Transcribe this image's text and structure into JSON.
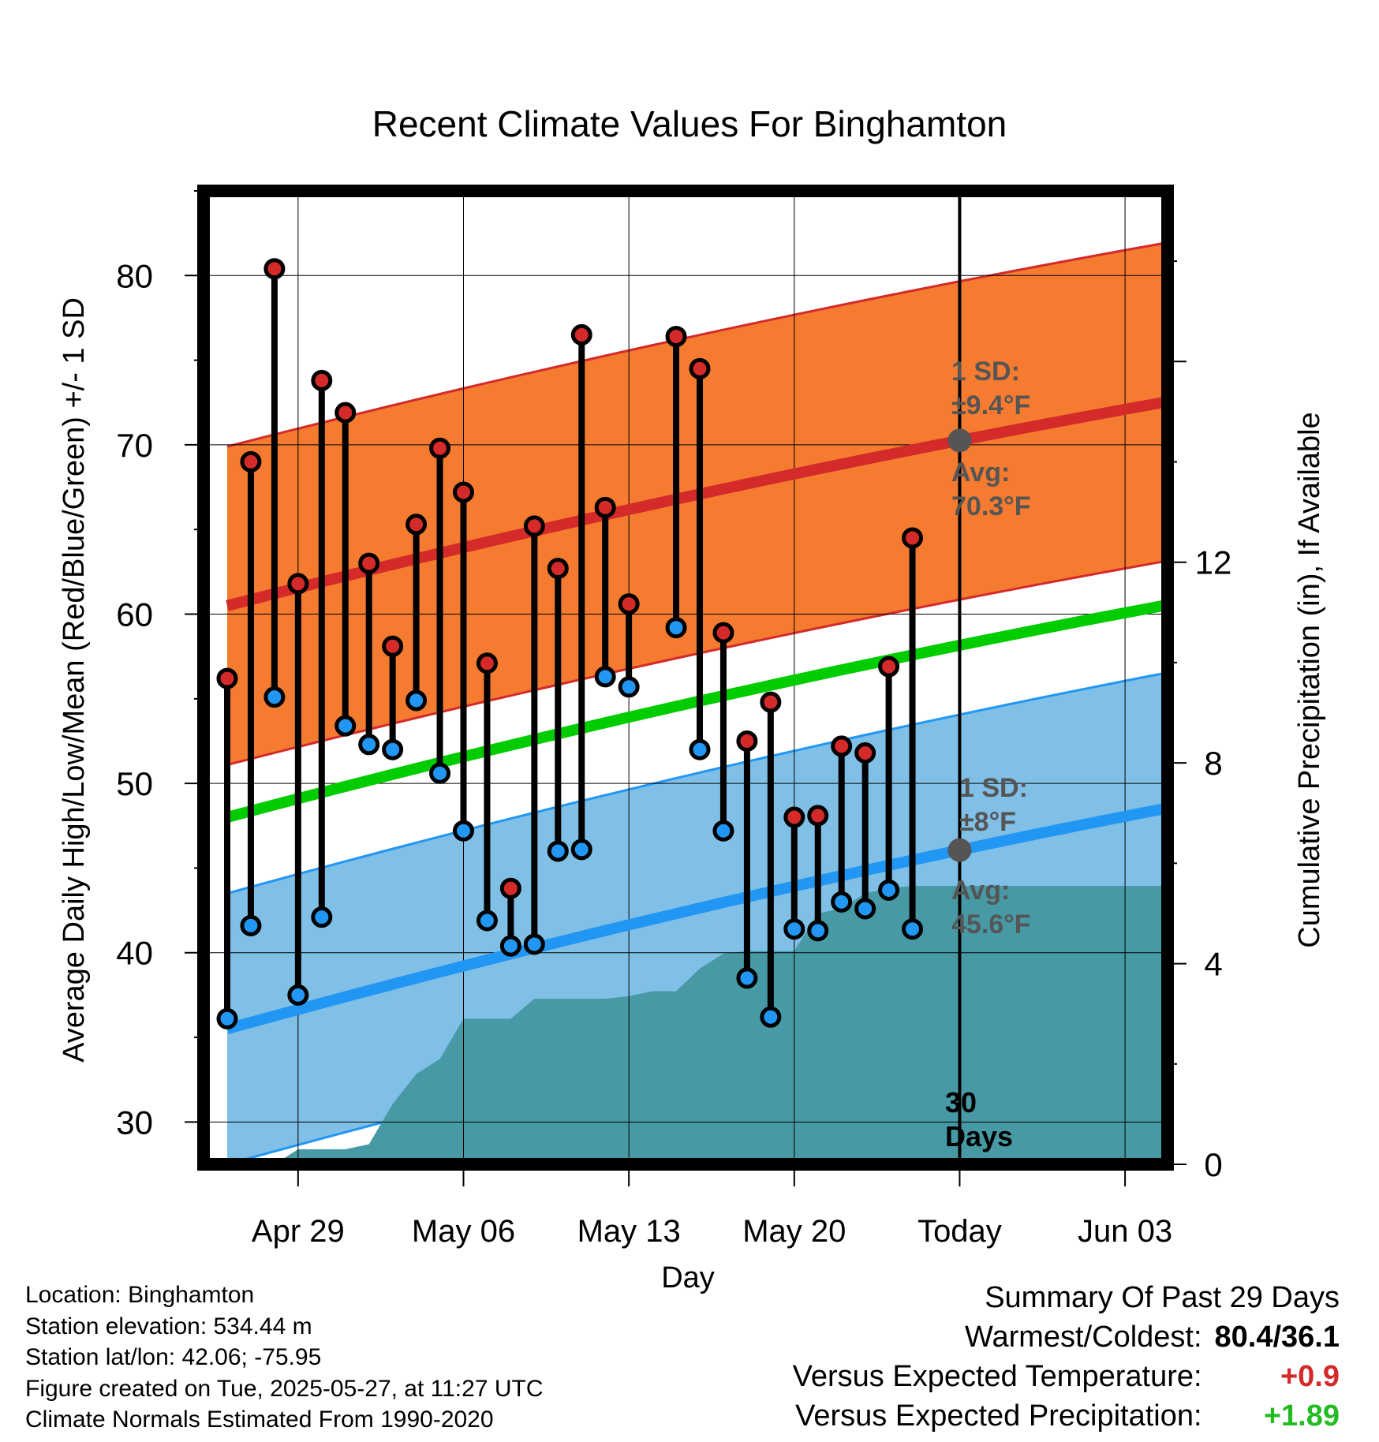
{
  "chart_data": {
    "type": "line",
    "title": "Recent Climate Values For Binghamton",
    "xlabel": "Day",
    "ylabel": "Average Daily High/Low/Mean (Red/Blue/Green) +/- 1 SD",
    "y2label": "Cumulative Precipitation (in), If Available",
    "ylim": [
      27.5,
      85
    ],
    "y2lim": [
      0,
      19.4
    ],
    "x_tick_labels": [
      "Apr 29",
      "May 06",
      "May 13",
      "May 20",
      "Today",
      "Jun 03"
    ],
    "y_ticks": [
      30,
      40,
      50,
      60,
      70,
      80
    ],
    "y2_ticks": [
      0,
      4,
      8,
      12
    ],
    "days": [
      "Apr 26",
      "Apr 27",
      "Apr 28",
      "Apr 29",
      "Apr 30",
      "May 01",
      "May 02",
      "May 03",
      "May 04",
      "May 05",
      "May 06",
      "May 07",
      "May 08",
      "May 09",
      "May 10",
      "May 11",
      "May 12",
      "May 13",
      "May 14",
      "May 15",
      "May 16",
      "May 17",
      "May 18",
      "May 19",
      "May 20",
      "May 21",
      "May 22",
      "May 23",
      "May 24",
      "May 25",
      "May 26",
      "May 27",
      "May 28",
      "May 29",
      "May 30",
      "May 31",
      "Jun 01",
      "Jun 02",
      "Jun 03",
      "Jun 04",
      "Jun 05"
    ],
    "series": [
      {
        "name": "Daily High",
        "color": "#d42a2a",
        "values": [
          56.2,
          69.0,
          80.4,
          61.8,
          73.8,
          71.9,
          63.0,
          58.1,
          65.3,
          69.8,
          67.2,
          57.1,
          43.8,
          65.2,
          62.7,
          76.5,
          66.3,
          60.6,
          null,
          76.4,
          74.5,
          58.9,
          52.5,
          54.8,
          48.0,
          48.1,
          52.2,
          51.8,
          56.9,
          64.5
        ]
      },
      {
        "name": "Daily Low",
        "color": "#2196f3",
        "values": [
          36.1,
          41.6,
          55.1,
          37.5,
          42.1,
          53.4,
          52.3,
          52.0,
          54.9,
          50.6,
          47.2,
          41.9,
          40.4,
          40.5,
          46.0,
          46.1,
          56.3,
          55.7,
          null,
          59.2,
          52.0,
          47.2,
          38.5,
          36.2,
          41.4,
          41.3,
          43.0,
          42.6,
          43.7,
          41.4
        ]
      },
      {
        "name": "Normal High",
        "color": "#d42a2a",
        "values": [
          60.5,
          72.6
        ]
      },
      {
        "name": "Normal Low",
        "color": "#2196f3",
        "values": [
          35.5,
          48.6
        ]
      },
      {
        "name": "Normal Mean",
        "color": "#00cc00",
        "values": [
          48.0,
          60.6
        ]
      },
      {
        "name": "Cumulative Precipitation",
        "color": "#479aa5",
        "values": [
          0,
          0,
          0,
          0.3,
          0.3,
          0.3,
          0.4,
          1.2,
          1.8,
          2.1,
          2.9,
          2.9,
          2.9,
          3.3,
          3.3,
          3.3,
          3.3,
          3.35,
          3.45,
          3.45,
          3.9,
          4.2,
          4.25,
          4.25,
          4.25,
          5.0,
          5.1,
          5.4,
          5.5,
          5.55,
          5.55,
          5.55,
          5.55,
          5.55,
          5.55,
          5.55,
          5.55,
          5.55,
          5.55,
          5.55,
          5.55
        ]
      }
    ],
    "sd_high": 9.4,
    "sd_low": 8.0,
    "colors": {
      "high_band": "#f47b30",
      "low_band": "#80bfe6",
      "high_line": "#d42a2a",
      "low_line": "#2196f3",
      "mean_line": "#00cc00",
      "precip": "#479aa5",
      "high_marker": "#d42a2a",
      "low_marker": "#2196f3",
      "annotation": "#555555",
      "warm_value": "#d42a2a",
      "precip_value": "#22bb22"
    },
    "annotations": {
      "high_sd_label": "1 SD:",
      "high_sd_value": "±9.4°F",
      "high_avg_label": "Avg:",
      "high_avg_value": "70.3°F",
      "low_sd_label": "1 SD:",
      "low_sd_value": "±8°F",
      "low_avg_label": "Avg:",
      "low_avg_value": "45.6°F",
      "today_days_count": "30",
      "today_days_unit": "Days"
    }
  },
  "info": {
    "location": "Location: Binghamton",
    "elevation": "Station elevation: 534.44 m",
    "latlon": "Station lat/lon: 42.06; -75.95",
    "created": "Figure created on Tue, 2025-05-27, at 11:27 UTC",
    "normals": "Climate Normals Estimated From 1990-2020"
  },
  "summary": {
    "heading": "Summary Of Past 29 Days",
    "warmest_label": "Warmest/Coldest:",
    "warmest_value": "80.4/36.1",
    "temp_label": "Versus Expected Temperature:",
    "temp_value": "+0.9",
    "precip_label": "Versus Expected Precipitation:",
    "precip_value": "+1.89"
  }
}
